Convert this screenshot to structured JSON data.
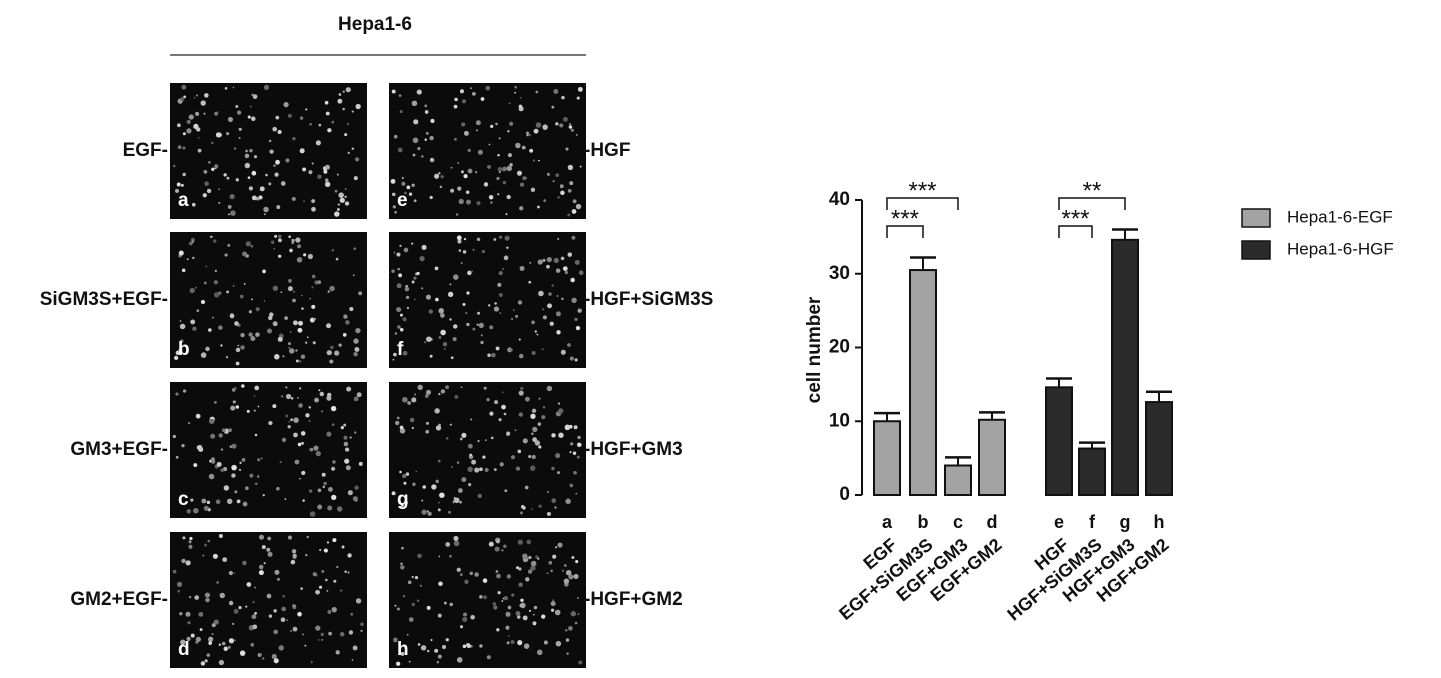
{
  "figure": {
    "title": "Hepa1-6",
    "panels": [
      {
        "letter": "a",
        "label": "EGF-"
      },
      {
        "letter": "b",
        "label": "SiGM3S+EGF-"
      },
      {
        "letter": "c",
        "label": "GM3+EGF-"
      },
      {
        "letter": "d",
        "label": "GM2+EGF-"
      },
      {
        "letter": "e",
        "label": "-HGF"
      },
      {
        "letter": "f",
        "label": "-HGF+SiGM3S"
      },
      {
        "letter": "g",
        "label": "-HGF+GM3"
      },
      {
        "letter": "h",
        "label": "-HGF+GM2"
      }
    ]
  },
  "chart_data": {
    "type": "bar",
    "ylabel": "cell number",
    "categories": [
      "a",
      "b",
      "c",
      "d",
      "e",
      "f",
      "g",
      "h"
    ],
    "category_labels": [
      "EGF",
      "EGF+SiGM3S",
      "EGF+GM3",
      "EGF+GM2",
      "HGF",
      "HGF+SiGM3S",
      "HGF+GM3",
      "HGF+GM2"
    ],
    "series": [
      {
        "name": "Hepa1-6-EGF",
        "color": "#a3a3a3",
        "values": [
          10,
          30.5,
          4,
          10.2,
          null,
          null,
          null,
          null
        ],
        "errors": [
          1.1,
          1.7,
          1.1,
          1,
          null,
          null,
          null,
          null
        ]
      },
      {
        "name": "Hepa1-6-HGF",
        "color": "#2b2b2b",
        "values": [
          null,
          null,
          null,
          null,
          14.6,
          6.3,
          34.6,
          12.6
        ],
        "errors": [
          null,
          null,
          null,
          null,
          1.2,
          0.8,
          1.4,
          1.4
        ]
      }
    ],
    "annotations": [
      {
        "label": "***",
        "between": [
          "a",
          "b"
        ]
      },
      {
        "label": "***",
        "between": [
          "a",
          "c"
        ]
      },
      {
        "label": "***",
        "between": [
          "e",
          "f"
        ]
      },
      {
        "label": "**",
        "between": [
          "e",
          "g"
        ]
      }
    ],
    "ylim": [
      0,
      40
    ],
    "yticks": [
      0,
      10,
      20,
      30,
      40
    ],
    "legend": "right"
  }
}
